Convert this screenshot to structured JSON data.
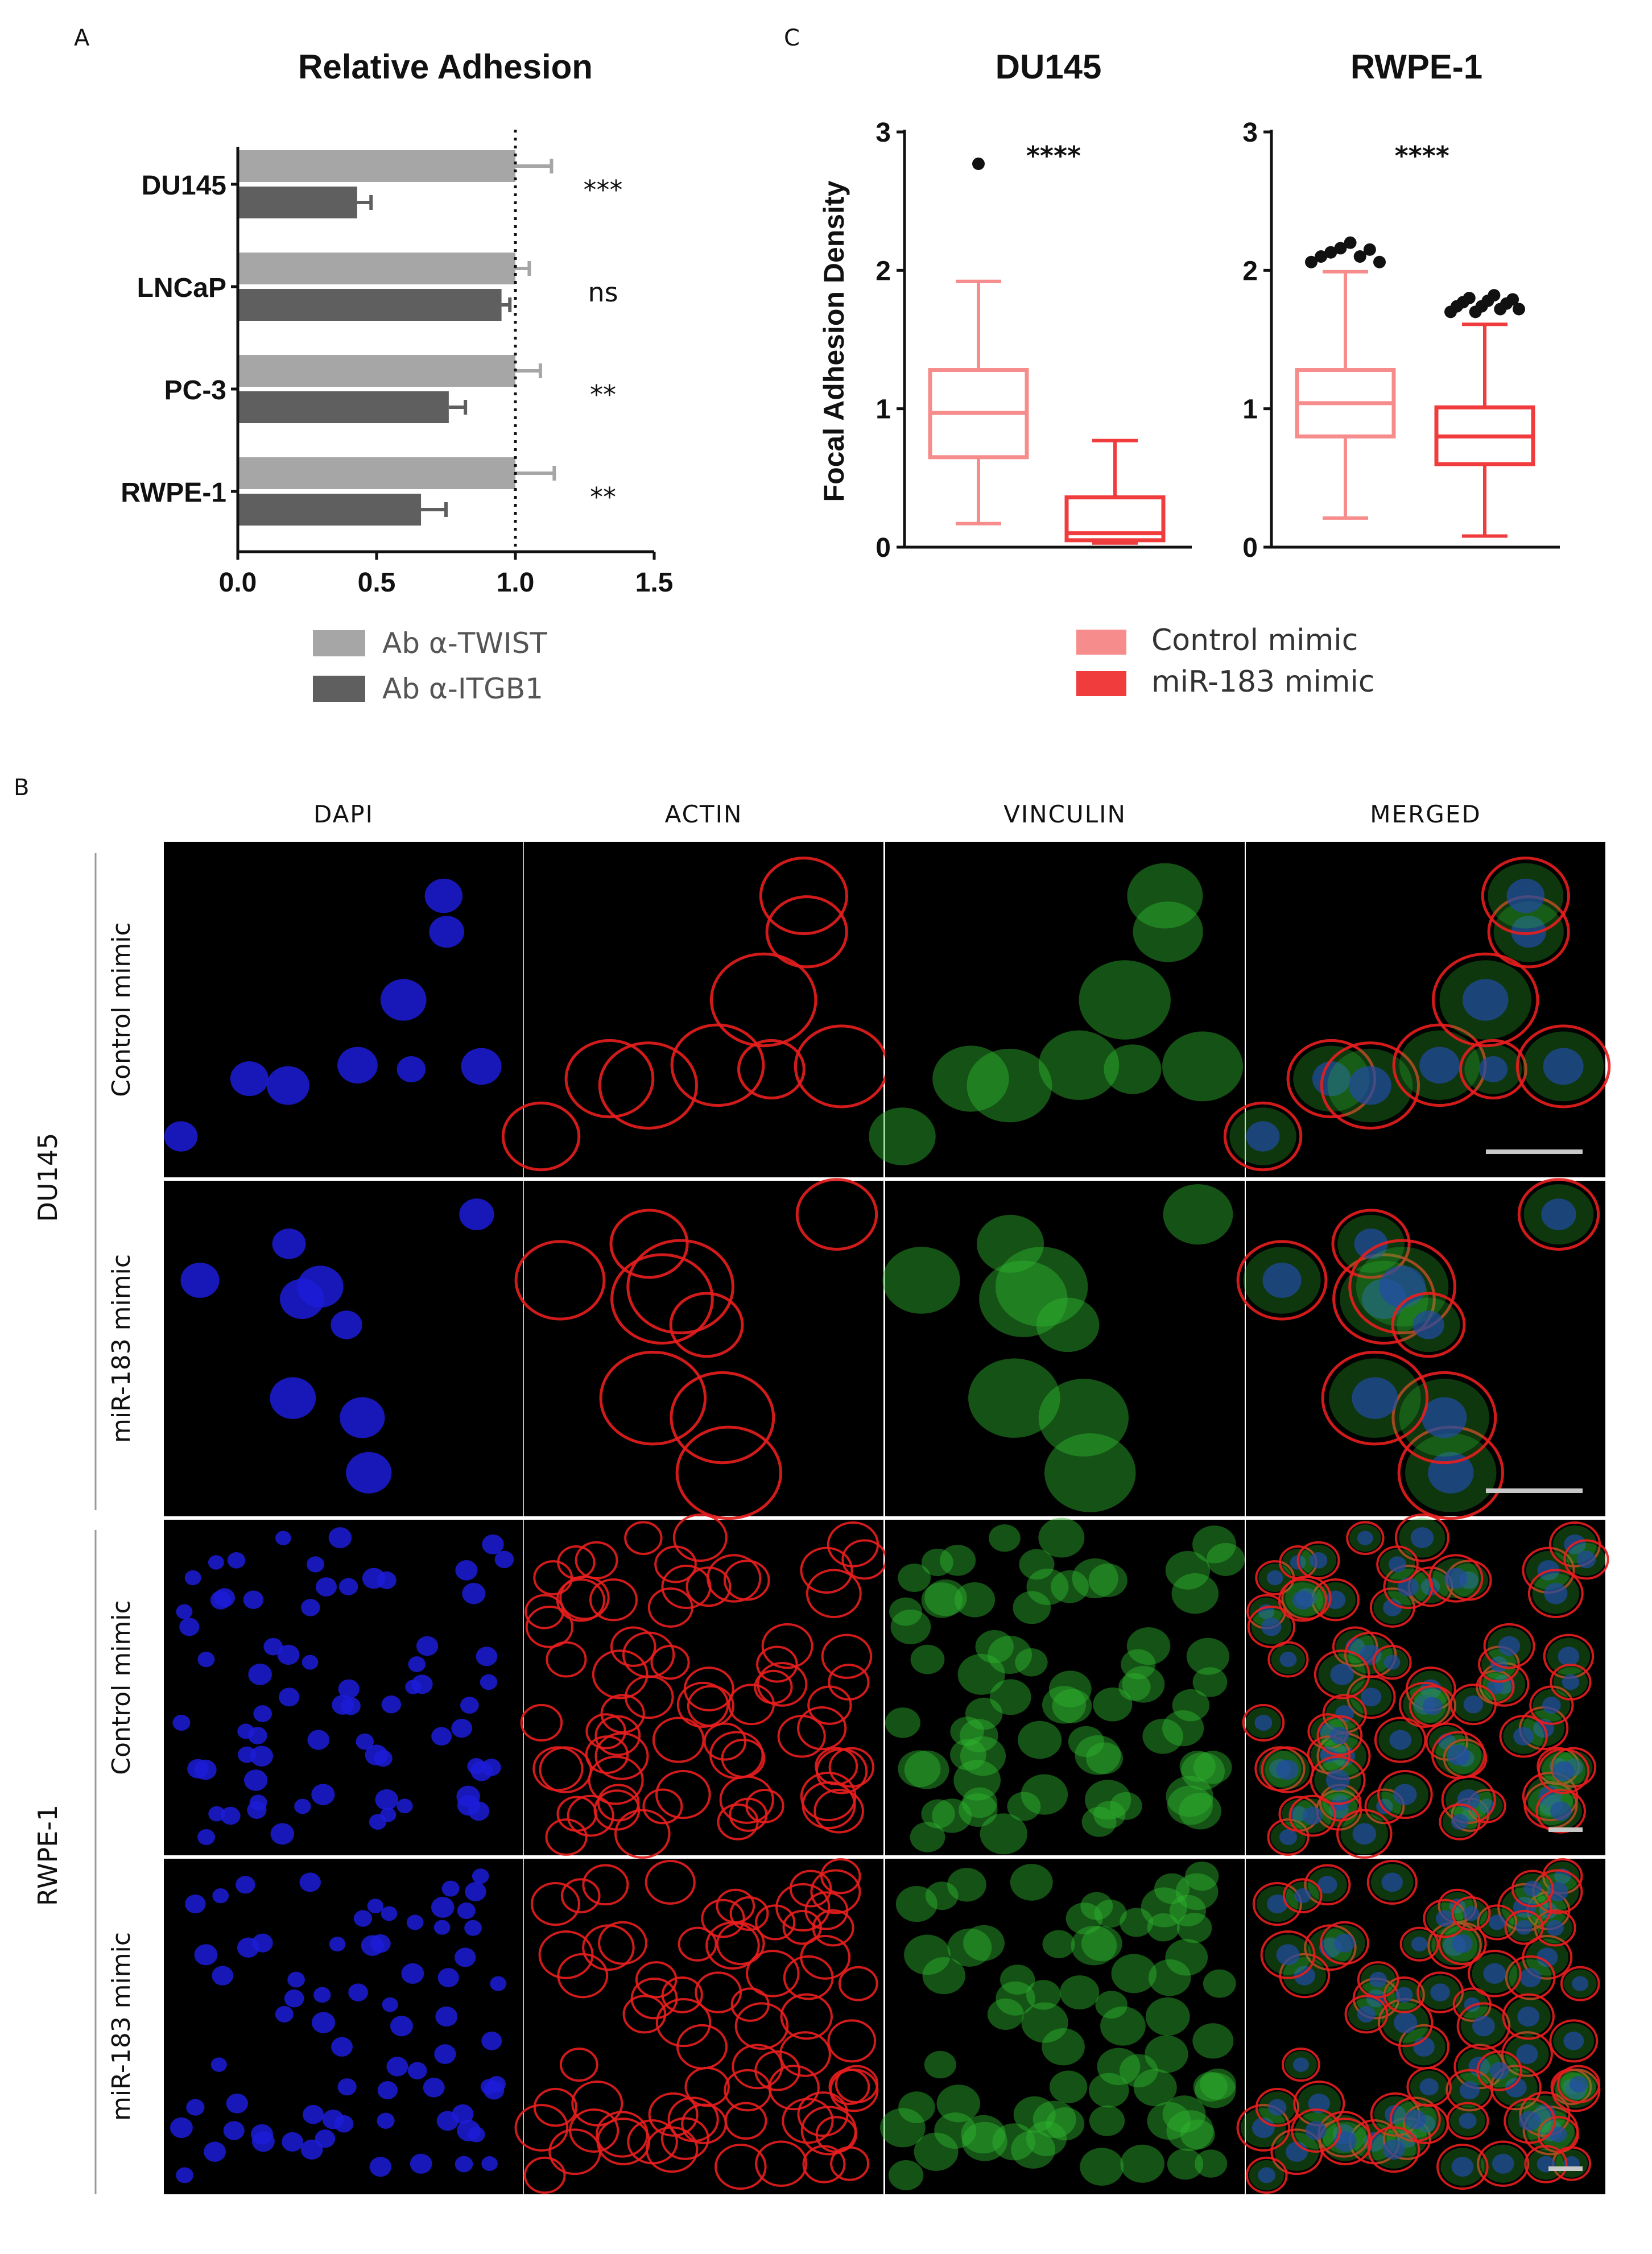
{
  "panel_letters": {
    "a": "A",
    "b": "B",
    "c": "C"
  },
  "chart_data": [
    {
      "panel": "A",
      "type": "bar",
      "orientation": "horizontal",
      "title": "Relative Adhesion",
      "categories": [
        "DU145",
        "LNCaP",
        "PC-3",
        "RWPE-1"
      ],
      "series": [
        {
          "name": "Ab α-TWIST",
          "color": "#a6a6a6",
          "values": [
            1.0,
            1.0,
            1.0,
            1.0
          ],
          "errors": [
            0.13,
            0.05,
            0.09,
            0.14
          ]
        },
        {
          "name": "Ab α-ITGB1",
          "color": "#5f5f5f",
          "values": [
            0.43,
            0.95,
            0.76,
            0.66
          ],
          "errors": [
            0.05,
            0.03,
            0.06,
            0.09
          ]
        }
      ],
      "significance": [
        "***",
        "ns",
        "**",
        "**"
      ],
      "xlim": [
        0,
        1.5
      ],
      "xticks": [
        "0.0",
        "0.5",
        "1.0",
        "1.5"
      ],
      "reference_line": 1.0,
      "legend_placement": "bottom"
    },
    {
      "panel": "C",
      "type": "box",
      "title": "DU145",
      "ylabel": "Focal Adhesion Density",
      "ylim": [
        0,
        3
      ],
      "yticks": [
        "0",
        "1",
        "2",
        "3"
      ],
      "significance": "****",
      "boxes": [
        {
          "series": "Control mimic",
          "min": 0.17,
          "q1": 0.65,
          "median": 0.97,
          "q3": 1.28,
          "max": 1.92,
          "outliers": [
            2.77
          ]
        },
        {
          "series": "miR-183 mimic",
          "min": 0.03,
          "q1": 0.05,
          "median": 0.1,
          "q3": 0.36,
          "max": 0.77,
          "outliers": []
        }
      ]
    },
    {
      "panel": "C",
      "type": "box",
      "title": "RWPE-1",
      "ylim": [
        0,
        3
      ],
      "yticks": [
        "0",
        "1",
        "2",
        "3"
      ],
      "significance": "****",
      "boxes": [
        {
          "series": "Control mimic",
          "min": 0.21,
          "q1": 0.8,
          "median": 1.04,
          "q3": 1.28,
          "max": 1.99,
          "outliers": [
            2.06,
            2.1,
            2.13,
            2.16,
            2.2,
            2.1,
            2.15,
            2.06
          ]
        },
        {
          "series": "miR-183 mimic",
          "min": 0.08,
          "q1": 0.6,
          "median": 0.8,
          "q3": 1.01,
          "max": 1.61,
          "outliers": [
            1.7,
            1.74,
            1.77,
            1.8,
            1.7,
            1.74,
            1.78,
            1.82,
            1.72,
            1.76,
            1.79,
            1.72
          ]
        }
      ],
      "legend": [
        {
          "name": "Control mimic",
          "color": "#f78c8c"
        },
        {
          "name": "miR-183 mimic",
          "color": "#f03c3c"
        }
      ]
    }
  ],
  "micrographs": {
    "columns": [
      "DAPI",
      "ACTIN",
      "VINCULIN",
      "MERGED"
    ],
    "groups": [
      {
        "cell_line": "DU145",
        "rows": [
          "Control mimic",
          "miR-183 mimic"
        ]
      },
      {
        "cell_line": "RWPE-1",
        "rows": [
          "Control mimic",
          "miR-183 mimic"
        ]
      }
    ],
    "channel_colors": {
      "DAPI": "#1c1cd8",
      "ACTIN": "#e81e1e",
      "VINCULIN": "#2fb52f"
    }
  }
}
